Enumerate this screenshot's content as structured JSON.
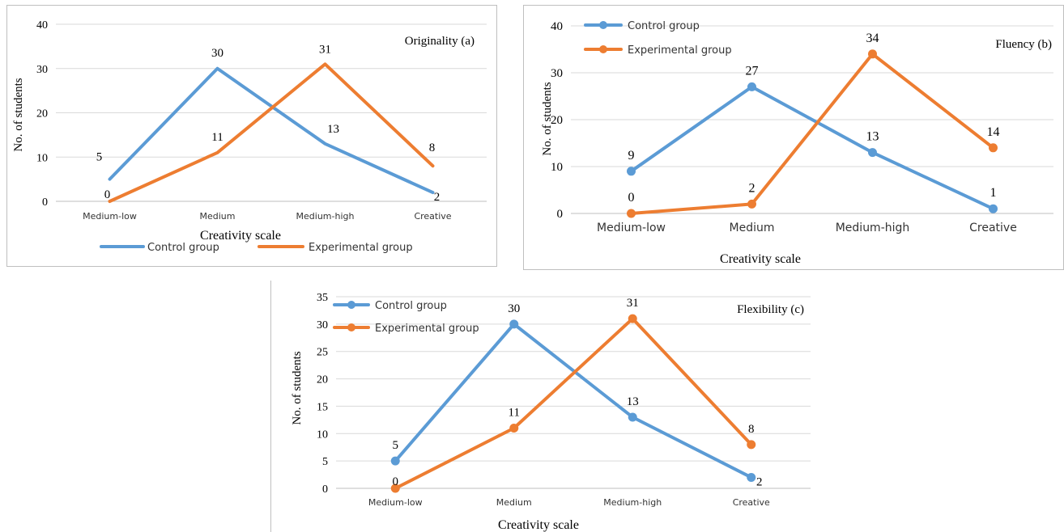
{
  "colors": {
    "control": "#5b9bd5",
    "experimental": "#ed7d31",
    "grid": "#d9d9d9",
    "text": "#000000",
    "axis_text": "#333333"
  },
  "chart_data": [
    {
      "type": "line",
      "title": "Originality (a)",
      "xlabel": "Creativity scale",
      "ylabel": "No. of students",
      "categories": [
        "Medium-low",
        "Medium",
        "Medium-high",
        "Creative"
      ],
      "ylim": [
        0,
        40
      ],
      "yticks": [
        0,
        10,
        20,
        30,
        40
      ],
      "markers": false,
      "legend_position": "bottom",
      "grid": true,
      "series": [
        {
          "name": "Control group",
          "values": [
            5,
            30,
            13,
            2
          ],
          "color": "#5b9bd5"
        },
        {
          "name": "Experimental group",
          "values": [
            0,
            11,
            31,
            8
          ],
          "color": "#ed7d31"
        }
      ]
    },
    {
      "type": "line",
      "title": "Fluency (b)",
      "xlabel": "Creativity scale",
      "ylabel": "No. of students",
      "categories": [
        "Medium-low",
        "Medium",
        "Medium-high",
        "Creative"
      ],
      "ylim": [
        0,
        40
      ],
      "yticks": [
        0,
        10,
        20,
        30,
        40
      ],
      "markers": true,
      "legend_position": "top-left",
      "grid": true,
      "series": [
        {
          "name": "Control group",
          "values": [
            9,
            27,
            13,
            1
          ],
          "color": "#5b9bd5"
        },
        {
          "name": "Experimental group",
          "values": [
            0,
            2,
            34,
            14
          ],
          "color": "#ed7d31"
        }
      ]
    },
    {
      "type": "line",
      "title": "Flexibility (c)",
      "xlabel": "Creativity scale",
      "ylabel": "No. of students",
      "categories": [
        "Medium-low",
        "Medium",
        "Medium-high",
        "Creative"
      ],
      "ylim": [
        0,
        35
      ],
      "yticks": [
        0,
        5,
        10,
        15,
        20,
        25,
        30,
        35
      ],
      "markers": true,
      "legend_position": "top-left",
      "grid": true,
      "series": [
        {
          "name": "Control group",
          "values": [
            5,
            30,
            13,
            2
          ],
          "color": "#5b9bd5"
        },
        {
          "name": "Experimental group",
          "values": [
            0,
            11,
            31,
            8
          ],
          "color": "#ed7d31"
        }
      ]
    }
  ]
}
